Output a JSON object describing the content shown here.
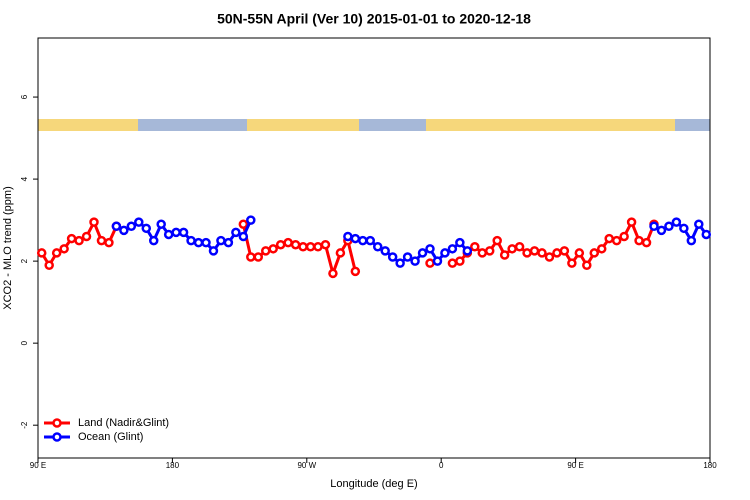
{
  "chart_data": {
    "type": "line",
    "title": "50N-55N April (Ver 10)   2015-01-01 to 2020-12-18",
    "x_label": "Longitude (deg E)",
    "y_label": "XCO2 - MLO trend (ppm)",
    "x": [
      92.5,
      97.5,
      102.5,
      107.5,
      112.5,
      117.5,
      122.5,
      127.5,
      132.5,
      137.5,
      142.5,
      147.5,
      152.5,
      157.5,
      162.5,
      167.5,
      172.5,
      177.5,
      182.5,
      187.5,
      192.5,
      197.5,
      202.5,
      207.5,
      212.5,
      217.5,
      222.5,
      227.5,
      232.5,
      237.5,
      242.5,
      247.5,
      252.5,
      257.5,
      262.5,
      267.5,
      272.5,
      277.5,
      282.5,
      287.5,
      292.5,
      297.5,
      302.5,
      307.5,
      312.5,
      317.5,
      322.5,
      327.5,
      332.5,
      337.5,
      342.5,
      347.5,
      352.5,
      357.5,
      362.5,
      367.5,
      372.5,
      377.5,
      382.5,
      387.5,
      392.5,
      397.5,
      402.5,
      407.5,
      412.5,
      417.5,
      422.5,
      427.5,
      432.5,
      437.5,
      442.5,
      447.5,
      452.5,
      457.5,
      462.5,
      467.5,
      472.5,
      477.5,
      482.5,
      487.5,
      492.5,
      497.5,
      502.5,
      507.5,
      512.5,
      517.5,
      522.5,
      527.5,
      532.5,
      537.5
    ],
    "series": [
      {
        "name": "Land (Nadir&Glint)",
        "color": "#ff0000",
        "values": [
          2.2,
          1.9,
          2.2,
          2.3,
          2.55,
          2.5,
          2.6,
          2.95,
          2.5,
          2.45,
          2.85,
          null,
          null,
          null,
          null,
          null,
          null,
          null,
          null,
          null,
          null,
          null,
          null,
          null,
          null,
          null,
          null,
          2.9,
          2.1,
          2.1,
          2.25,
          2.3,
          2.4,
          2.45,
          2.4,
          2.35,
          2.35,
          2.35,
          2.4,
          1.7,
          2.2,
          2.5,
          1.75,
          null,
          null,
          null,
          null,
          null,
          null,
          null,
          null,
          null,
          1.95,
          null,
          null,
          1.95,
          2.0,
          2.2,
          2.35,
          2.2,
          2.25,
          2.5,
          2.15,
          2.3,
          2.35,
          2.2,
          2.25,
          2.2,
          2.1,
          2.2,
          2.25,
          1.95,
          2.2,
          1.9,
          2.2,
          2.3,
          2.55,
          2.5,
          2.6,
          2.95,
          2.5,
          2.45,
          2.9,
          null,
          null,
          null,
          null,
          null,
          null,
          null
        ]
      },
      {
        "name": "Ocean (Glint)",
        "color": "#0000ff",
        "values": [
          null,
          null,
          null,
          null,
          null,
          null,
          null,
          null,
          null,
          null,
          2.85,
          2.75,
          2.85,
          2.95,
          2.8,
          2.5,
          2.9,
          2.65,
          2.7,
          2.7,
          2.5,
          2.45,
          2.45,
          2.25,
          2.5,
          2.45,
          2.7,
          2.6,
          3.0,
          null,
          null,
          null,
          null,
          null,
          null,
          null,
          null,
          null,
          null,
          null,
          null,
          2.6,
          2.55,
          2.5,
          2.5,
          2.35,
          2.25,
          2.1,
          1.95,
          2.1,
          2.0,
          2.2,
          2.3,
          2.0,
          2.2,
          2.3,
          2.45,
          2.25,
          null,
          null,
          null,
          null,
          null,
          null,
          null,
          null,
          null,
          null,
          null,
          null,
          null,
          null,
          null,
          null,
          null,
          null,
          null,
          null,
          null,
          null,
          null,
          null,
          2.85,
          2.75,
          2.85,
          2.95,
          2.8,
          2.5,
          2.9,
          2.65
        ]
      }
    ],
    "xlim": [
      90,
      540
    ],
    "xticks": [
      {
        "value": 90,
        "label": "90 E"
      },
      180,
      {
        "value": 270,
        "label": "90 W"
      },
      {
        "value": 360,
        "label": "0"
      },
      {
        "value": 450,
        "label": "90 E"
      },
      {
        "value": 540,
        "label": "180"
      }
    ],
    "ylim": [
      -2.8,
      7.44
    ],
    "yticks": [
      -2,
      0,
      2,
      4,
      6
    ],
    "legend": "bottom-left"
  }
}
